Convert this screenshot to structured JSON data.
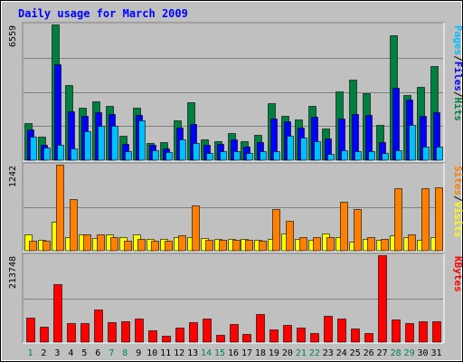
{
  "chart_data": {
    "type": "bar",
    "title": "Daily usage for March 2009",
    "days": [
      "1",
      "2",
      "3",
      "4",
      "5",
      "6",
      "7",
      "8",
      "9",
      "10",
      "11",
      "12",
      "13",
      "14",
      "15",
      "16",
      "17",
      "18",
      "19",
      "20",
      "21",
      "22",
      "23",
      "24",
      "25",
      "26",
      "27",
      "28",
      "29",
      "30",
      "31"
    ],
    "weekend_days": [
      "1",
      "7",
      "8",
      "14",
      "15",
      "21",
      "22",
      "28",
      "29"
    ],
    "panels": [
      {
        "id": "top",
        "max_label": "6559",
        "legend": [
          "Pages",
          "/",
          "Files",
          "/",
          "Hits"
        ],
        "legend_colors": [
          "#00C0FF",
          "#000000",
          "#0000FF",
          "#000000",
          "#008040"
        ],
        "series": [
          {
            "name": "Hits",
            "color": "#008040",
            "values": [
              1790,
              1150,
              6559,
              3640,
              2540,
              2860,
              2620,
              1180,
              2540,
              820,
              880,
              1930,
              2820,
              1010,
              940,
              1320,
              920,
              1220,
              2750,
              2160,
              1980,
              2630,
              1530,
              3320,
              3900,
              3230,
              1710,
              6040,
              3150,
              3550,
              4550
            ]
          },
          {
            "name": "Files",
            "color": "#0000FF",
            "values": [
              1490,
              750,
              4620,
              2360,
              2160,
              2310,
              2230,
              780,
              2190,
              750,
              560,
              1560,
              1750,
              750,
              780,
              1010,
              660,
              880,
              1990,
              1890,
              1580,
              2080,
              1050,
              2020,
              2220,
              2200,
              890,
              3510,
              2910,
              2130,
              2300
            ]
          },
          {
            "name": "Pages",
            "color": "#00C0FF",
            "values": [
              1130,
              630,
              760,
              550,
              1420,
              1680,
              1640,
              430,
              1910,
              490,
              410,
              1020,
              820,
              370,
              420,
              440,
              370,
              420,
              420,
              1180,
              1100,
              930,
              320,
              480,
              420,
              420,
              370,
              460,
              1720,
              660,
              650
            ]
          }
        ]
      },
      {
        "id": "middle",
        "max_label": "1242",
        "legend": [
          "Sites",
          "/",
          "Visits"
        ],
        "legend_colors": [
          "#FF8000",
          "#000000",
          "#FFFF00"
        ],
        "series": [
          {
            "name": "Visits",
            "color": "#FFFF00",
            "values": [
              240,
              160,
              420,
              200,
              230,
              180,
              240,
              200,
              240,
              170,
              170,
              200,
              200,
              180,
              170,
              170,
              170,
              160,
              170,
              250,
              170,
              160,
              250,
              200,
              130,
              170,
              160,
              220,
              200,
              160,
              200
            ]
          },
          {
            "name": "Sites",
            "color": "#FF8000",
            "values": [
              140,
              140,
              1242,
              750,
              240,
              230,
              200,
              140,
              170,
              140,
              140,
              220,
              650,
              160,
              160,
              160,
              160,
              150,
              600,
              430,
              200,
              200,
              200,
              700,
              600,
              200,
              170,
              900,
              230,
              900,
              920
            ]
          }
        ]
      },
      {
        "id": "bottom",
        "max_label": "213748",
        "legend": [
          "KBytes"
        ],
        "legend_colors": [
          "#FF0000"
        ],
        "series": [
          {
            "name": "KBytes",
            "color": "#FF0000",
            "values": [
              60000,
              38000,
              142000,
              47000,
              47000,
              80000,
              50000,
              52000,
              58000,
              30000,
              15000,
              36000,
              48000,
              58000,
              18000,
              44000,
              20000,
              68000,
              32000,
              42000,
              36000,
              22000,
              65000,
              58000,
              33000,
              22000,
              213748,
              55000,
              46000,
              52000,
              52000
            ]
          }
        ]
      }
    ]
  }
}
